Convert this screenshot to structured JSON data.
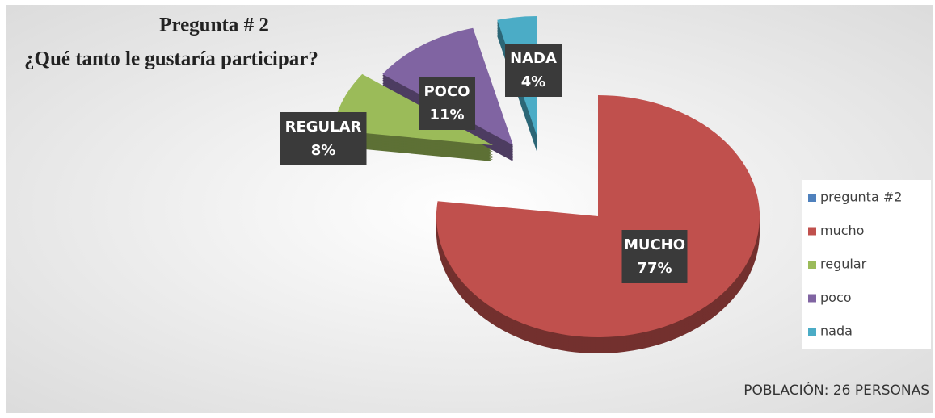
{
  "chart_data": {
    "type": "pie",
    "title": "Pregunta # 2",
    "subtitle": "¿Qué tanto le gustaría participar?",
    "note": "POBLACIÓN: 26 PERSONAS",
    "slices": [
      {
        "name": "MUCHO",
        "value": 77,
        "value_label": "77%",
        "color": "#c0504d"
      },
      {
        "name": "REGULAR",
        "value": 8,
        "value_label": "8%",
        "color": "#9bbb59"
      },
      {
        "name": "POCO",
        "value": 11,
        "value_label": "11%",
        "color": "#8064a2"
      },
      {
        "name": "NADA",
        "value": 4,
        "value_label": "4%",
        "color": "#4bacc6"
      }
    ],
    "legend": [
      {
        "name": "pregunta #2",
        "color": "#4f81bd"
      },
      {
        "name": "mucho",
        "color": "#c0504d"
      },
      {
        "name": "regular",
        "color": "#9bbb59"
      },
      {
        "name": "poco",
        "color": "#8064a2"
      },
      {
        "name": "nada",
        "color": "#4bacc6"
      }
    ]
  }
}
